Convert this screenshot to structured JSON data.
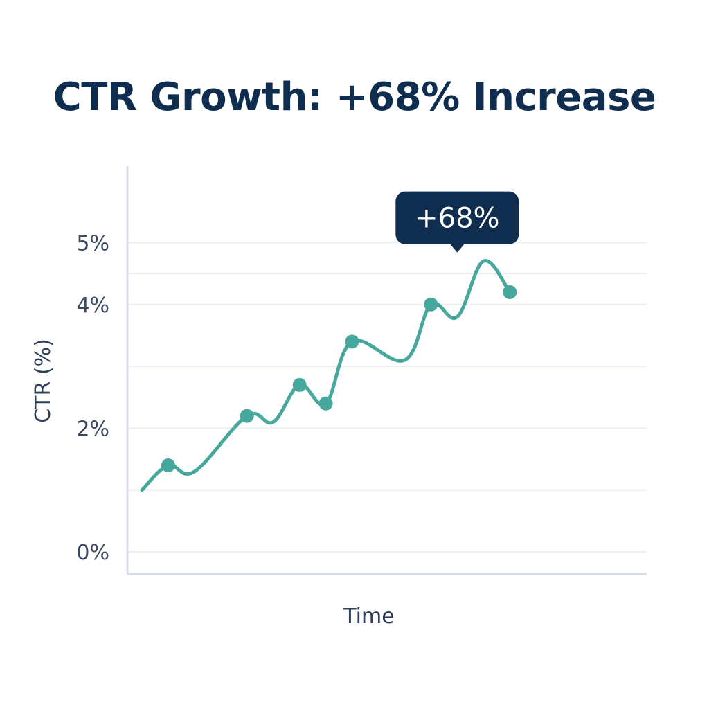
{
  "chart_data": {
    "type": "line",
    "title": "CTR Growth: +68% Increase",
    "xlabel": "Time",
    "ylabel": "CTR (%)",
    "y_ticks": [
      {
        "value": 0,
        "label": "0%"
      },
      {
        "value": 2,
        "label": "2%"
      },
      {
        "value": 4,
        "label": "4%"
      },
      {
        "value": 5,
        "label": "5%"
      }
    ],
    "ylim": [
      -0.2,
      5.9
    ],
    "xlim": [
      0,
      9
    ],
    "grid": true,
    "series": [
      {
        "color": "#46a89d",
        "x": [
          0,
          0.5,
          1,
          2,
          2.5,
          3,
          3.5,
          4,
          5,
          5.5,
          6,
          6.5,
          7
        ],
        "y": [
          1.0,
          1.4,
          1.3,
          2.2,
          2.1,
          2.7,
          2.4,
          3.4,
          3.1,
          4.0,
          3.8,
          4.7,
          4.2
        ],
        "markers": [
          1,
          3,
          5,
          6,
          7,
          9,
          12
        ]
      }
    ],
    "annotation": {
      "text": "+68%",
      "x": 6.0,
      "y": 5.4,
      "bg": "#0f2d4f"
    }
  }
}
